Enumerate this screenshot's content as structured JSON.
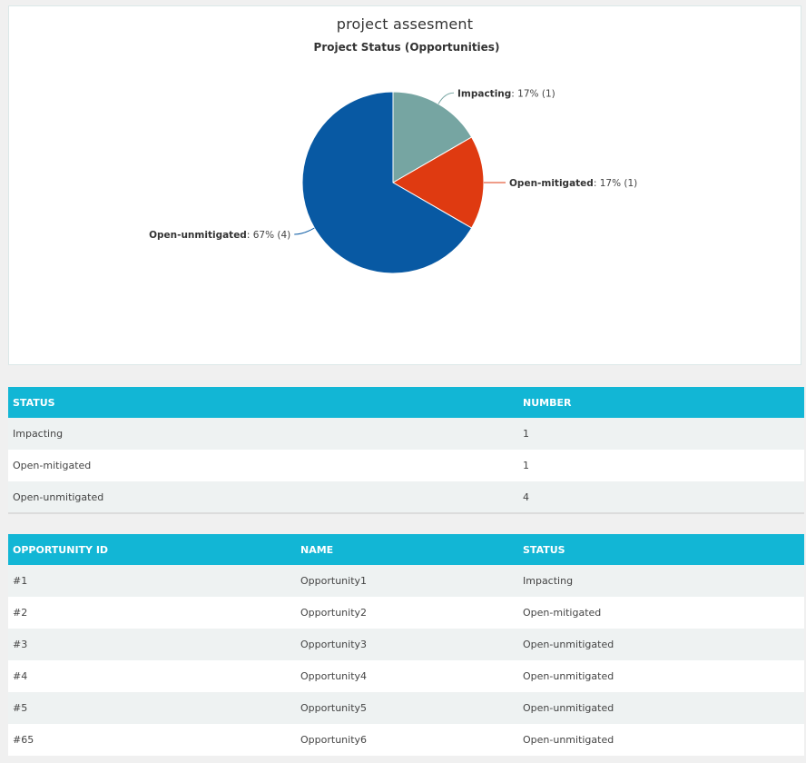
{
  "page_title": "project assesment",
  "chart_data": {
    "type": "pie",
    "title": "Project Status (Opportunities)",
    "slices": [
      {
        "name": "Impacting",
        "value": 1,
        "percent": "17%",
        "color": "#76a5a2"
      },
      {
        "name": "Open-mitigated",
        "value": 1,
        "percent": "17%",
        "color": "#df3a11"
      },
      {
        "name": "Open-unmitigated",
        "value": 4,
        "percent": "67%",
        "color": "#0859a3"
      }
    ]
  },
  "status_table": {
    "headers": [
      "STATUS",
      "NUMBER"
    ],
    "rows": [
      {
        "status": "Impacting",
        "number": "1"
      },
      {
        "status": "Open-mitigated",
        "number": "1"
      },
      {
        "status": "Open-unmitigated",
        "number": "4"
      }
    ]
  },
  "opportunity_table": {
    "headers": [
      "OPPORTUNITY ID",
      "NAME",
      "STATUS"
    ],
    "rows": [
      {
        "id": "#1",
        "name": "Opportunity1",
        "status": "Impacting"
      },
      {
        "id": "#2",
        "name": "Opportunity2",
        "status": "Open-mitigated"
      },
      {
        "id": "#3",
        "name": "Opportunity3",
        "status": "Open-unmitigated"
      },
      {
        "id": "#4",
        "name": "Opportunity4",
        "status": "Open-unmitigated"
      },
      {
        "id": "#5",
        "name": "Opportunity5",
        "status": "Open-unmitigated"
      },
      {
        "id": "#65",
        "name": "Opportunity6",
        "status": "Open-unmitigated"
      }
    ]
  }
}
